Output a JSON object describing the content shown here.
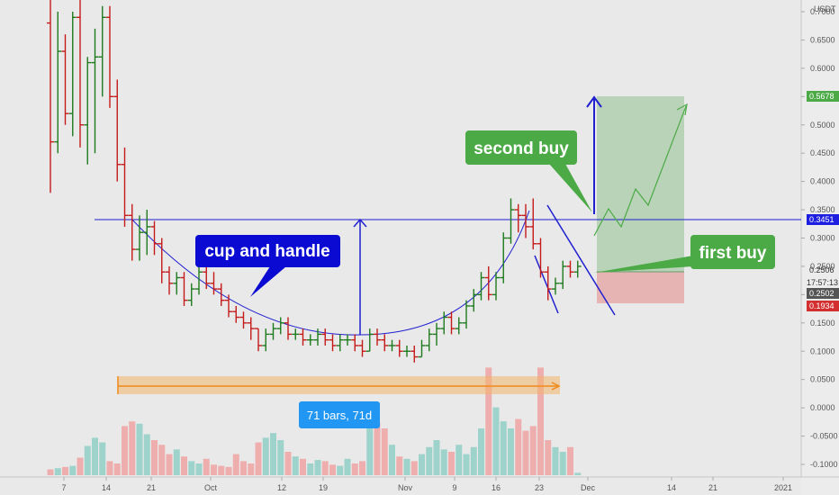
{
  "chart_data": {
    "type": "candlestick",
    "y_unit": "USDT",
    "ylim": [
      -0.12,
      0.73
    ],
    "y_ticks": [
      "0.7000",
      "0.6500",
      "0.6000",
      "0.5500",
      "0.5000",
      "0.4500",
      "0.4000",
      "0.3500",
      "0.3000",
      "0.2500",
      "0.2000",
      "0.1500",
      "0.1000",
      "0.0500",
      "0.0000",
      "-0.0500",
      "-0.1000"
    ],
    "x_ticks": [
      "7",
      "14",
      "21",
      "Oct",
      "12",
      "19",
      "Nov",
      "9",
      "16",
      "23",
      "Dec",
      "14",
      "21",
      "2021"
    ],
    "price_tags": {
      "target": "0.5678",
      "horizontal_level": "0.3451",
      "last_price": "0.2506",
      "countdown": "17:57:13",
      "entry": "0.2502",
      "stop": "0.1934"
    },
    "annotations": {
      "cup_and_handle": "cup and handle",
      "second_buy": "second buy",
      "first_buy": "first buy",
      "bars_range": "71 bars, 71d"
    },
    "ohlc": [
      [
        0.68,
        0.73,
        0.38,
        0.47
      ],
      [
        0.47,
        0.7,
        0.45,
        0.63
      ],
      [
        0.63,
        0.66,
        0.5,
        0.52
      ],
      [
        0.52,
        0.7,
        0.48,
        0.69
      ],
      [
        0.69,
        0.73,
        0.46,
        0.5
      ],
      [
        0.5,
        0.62,
        0.43,
        0.61
      ],
      [
        0.61,
        0.67,
        0.45,
        0.62
      ],
      [
        0.62,
        0.71,
        0.55,
        0.69
      ],
      [
        0.69,
        0.71,
        0.53,
        0.55
      ],
      [
        0.55,
        0.58,
        0.4,
        0.43
      ],
      [
        0.43,
        0.46,
        0.32,
        0.34
      ],
      [
        0.34,
        0.36,
        0.26,
        0.28
      ],
      [
        0.28,
        0.34,
        0.26,
        0.31
      ],
      [
        0.31,
        0.35,
        0.27,
        0.32
      ],
      [
        0.32,
        0.33,
        0.27,
        0.29
      ],
      [
        0.29,
        0.3,
        0.22,
        0.24
      ],
      [
        0.24,
        0.25,
        0.2,
        0.22
      ],
      [
        0.22,
        0.24,
        0.2,
        0.23
      ],
      [
        0.23,
        0.24,
        0.18,
        0.19
      ],
      [
        0.19,
        0.22,
        0.18,
        0.21
      ],
      [
        0.21,
        0.25,
        0.2,
        0.24
      ],
      [
        0.24,
        0.25,
        0.21,
        0.22
      ],
      [
        0.22,
        0.24,
        0.2,
        0.21
      ],
      [
        0.21,
        0.22,
        0.18,
        0.19
      ],
      [
        0.19,
        0.2,
        0.16,
        0.17
      ],
      [
        0.17,
        0.18,
        0.15,
        0.16
      ],
      [
        0.16,
        0.17,
        0.14,
        0.15
      ],
      [
        0.15,
        0.16,
        0.12,
        0.14
      ],
      [
        0.14,
        0.14,
        0.1,
        0.11
      ],
      [
        0.11,
        0.14,
        0.1,
        0.13
      ],
      [
        0.13,
        0.15,
        0.12,
        0.14
      ],
      [
        0.14,
        0.16,
        0.13,
        0.15
      ],
      [
        0.15,
        0.16,
        0.12,
        0.13
      ],
      [
        0.13,
        0.14,
        0.12,
        0.13
      ],
      [
        0.13,
        0.14,
        0.11,
        0.12
      ],
      [
        0.12,
        0.13,
        0.11,
        0.12
      ],
      [
        0.12,
        0.14,
        0.11,
        0.13
      ],
      [
        0.13,
        0.14,
        0.11,
        0.12
      ],
      [
        0.12,
        0.13,
        0.1,
        0.11
      ],
      [
        0.11,
        0.13,
        0.1,
        0.12
      ],
      [
        0.12,
        0.13,
        0.11,
        0.12
      ],
      [
        0.12,
        0.13,
        0.1,
        0.11
      ],
      [
        0.11,
        0.12,
        0.09,
        0.1
      ],
      [
        0.1,
        0.14,
        0.1,
        0.13
      ],
      [
        0.13,
        0.14,
        0.11,
        0.12
      ],
      [
        0.12,
        0.13,
        0.1,
        0.11
      ],
      [
        0.11,
        0.12,
        0.1,
        0.11
      ],
      [
        0.11,
        0.12,
        0.09,
        0.1
      ],
      [
        0.1,
        0.11,
        0.09,
        0.1
      ],
      [
        0.1,
        0.11,
        0.08,
        0.09
      ],
      [
        0.09,
        0.12,
        0.09,
        0.11
      ],
      [
        0.11,
        0.14,
        0.1,
        0.13
      ],
      [
        0.13,
        0.15,
        0.11,
        0.14
      ],
      [
        0.14,
        0.17,
        0.13,
        0.16
      ],
      [
        0.16,
        0.17,
        0.13,
        0.14
      ],
      [
        0.14,
        0.16,
        0.13,
        0.15
      ],
      [
        0.15,
        0.19,
        0.14,
        0.18
      ],
      [
        0.18,
        0.21,
        0.17,
        0.2
      ],
      [
        0.2,
        0.24,
        0.19,
        0.23
      ],
      [
        0.23,
        0.25,
        0.19,
        0.2
      ],
      [
        0.2,
        0.24,
        0.19,
        0.23
      ],
      [
        0.23,
        0.31,
        0.22,
        0.3
      ],
      [
        0.3,
        0.37,
        0.29,
        0.35
      ],
      [
        0.35,
        0.36,
        0.31,
        0.34
      ],
      [
        0.34,
        0.36,
        0.3,
        0.32
      ],
      [
        0.32,
        0.37,
        0.28,
        0.29
      ],
      [
        0.29,
        0.3,
        0.23,
        0.24
      ],
      [
        0.24,
        0.25,
        0.19,
        0.21
      ],
      [
        0.21,
        0.23,
        0.2,
        0.22
      ],
      [
        0.22,
        0.26,
        0.21,
        0.25
      ],
      [
        0.25,
        0.26,
        0.23,
        0.24
      ],
      [
        0.24,
        0.26,
        0.23,
        0.25
      ]
    ],
    "volume_scale_max": 1.0,
    "volume": [
      0.05,
      0.06,
      0.07,
      0.08,
      0.15,
      0.25,
      0.32,
      0.28,
      0.12,
      0.1,
      0.42,
      0.46,
      0.44,
      0.35,
      0.3,
      0.26,
      0.18,
      0.22,
      0.16,
      0.12,
      0.1,
      0.14,
      0.09,
      0.08,
      0.07,
      0.18,
      0.12,
      0.1,
      0.28,
      0.32,
      0.36,
      0.3,
      0.2,
      0.16,
      0.14,
      0.1,
      0.13,
      0.12,
      0.09,
      0.08,
      0.14,
      0.1,
      0.12,
      0.62,
      0.45,
      0.4,
      0.26,
      0.16,
      0.14,
      0.12,
      0.18,
      0.24,
      0.3,
      0.22,
      0.2,
      0.26,
      0.18,
      0.24,
      0.4,
      0.92,
      0.58,
      0.46,
      0.4,
      0.48,
      0.38,
      0.42,
      0.92,
      0.3,
      0.24,
      0.2,
      0.24,
      0.02
    ]
  }
}
